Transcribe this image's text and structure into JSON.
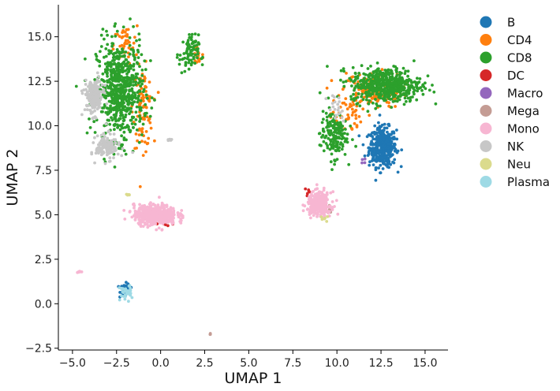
{
  "chart_data": {
    "type": "scatter",
    "title": "",
    "xlabel": "UMAP 1",
    "ylabel": "UMAP 2",
    "xlim": [
      -5.8,
      16.3
    ],
    "ylim": [
      -2.6,
      16.8
    ],
    "xticks": [
      -5.0,
      -2.5,
      0.0,
      2.5,
      5.0,
      7.5,
      10.0,
      12.5,
      15.0
    ],
    "xtick_labels": [
      "−5.0",
      "−2.5",
      "0.0",
      "2.5",
      "5.0",
      "7.5",
      "10.0",
      "12.5",
      "15.0"
    ],
    "yticks": [
      -2.5,
      0.0,
      2.5,
      5.0,
      7.5,
      10.0,
      12.5,
      15.0
    ],
    "ytick_labels": [
      "−2.5",
      "0.0",
      "2.5",
      "5.0",
      "7.5",
      "10.0",
      "12.5",
      "15.0"
    ],
    "grid": false,
    "legend_position": "right, outside plot",
    "series": [
      {
        "name": "B",
        "color": "#1f77b4",
        "clusters": [
          {
            "center": [
              12.6,
              8.8
            ],
            "spread": [
              0.7,
              1.0
            ],
            "count": 420
          },
          {
            "center": [
              -2.0,
              0.8
            ],
            "spread": [
              0.25,
              0.3
            ],
            "count": 60
          }
        ]
      },
      {
        "name": "CD4",
        "color": "#ff7f0e",
        "clusters": [
          {
            "center": [
              -1.0,
              11.0
            ],
            "spread": [
              0.5,
              2.0
            ],
            "count": 90
          },
          {
            "center": [
              -2.0,
              14.5
            ],
            "spread": [
              0.6,
              1.0
            ],
            "count": 40
          },
          {
            "center": [
              2.1,
              14.0
            ],
            "spread": [
              0.3,
              0.8
            ],
            "count": 25
          },
          {
            "center": [
              12.0,
              12.0
            ],
            "spread": [
              1.6,
              0.9
            ],
            "count": 160
          },
          {
            "center": [
              10.5,
              10.5
            ],
            "spread": [
              0.8,
              0.8
            ],
            "count": 40
          }
        ]
      },
      {
        "name": "CD8",
        "color": "#2ca02c",
        "clusters": [
          {
            "center": [
              -2.3,
              12.0
            ],
            "spread": [
              1.2,
              2.5
            ],
            "count": 650
          },
          {
            "center": [
              1.6,
              14.0
            ],
            "spread": [
              0.5,
              1.0
            ],
            "count": 80
          },
          {
            "center": [
              12.8,
              12.3
            ],
            "spread": [
              1.8,
              0.9
            ],
            "count": 520
          },
          {
            "center": [
              9.8,
              9.5
            ],
            "spread": [
              0.7,
              1.2
            ],
            "count": 160
          }
        ]
      },
      {
        "name": "DC",
        "color": "#d62728",
        "clusters": [
          {
            "center": [
              0.3,
              4.5
            ],
            "spread": [
              0.4,
              0.2
            ],
            "count": 8
          },
          {
            "center": [
              8.4,
              6.3
            ],
            "spread": [
              0.2,
              0.2
            ],
            "count": 6
          }
        ]
      },
      {
        "name": "Macro",
        "color": "#9467bd",
        "clusters": [
          {
            "center": [
              11.5,
              8.0
            ],
            "spread": [
              0.2,
              0.2
            ],
            "count": 4
          }
        ]
      },
      {
        "name": "Mega",
        "color": "#c49c94",
        "clusters": [
          {
            "center": [
              2.8,
              -1.7
            ],
            "spread": [
              0.05,
              0.05
            ],
            "count": 3
          },
          {
            "center": [
              9.5,
              5.2
            ],
            "spread": [
              0.3,
              0.3
            ],
            "count": 10
          }
        ]
      },
      {
        "name": "Mono",
        "color": "#f7b6d2",
        "clusters": [
          {
            "center": [
              -0.3,
              5.0
            ],
            "spread": [
              1.1,
              0.5
            ],
            "count": 520
          },
          {
            "center": [
              9.0,
              5.6
            ],
            "spread": [
              0.6,
              0.6
            ],
            "count": 300
          },
          {
            "center": [
              -4.6,
              1.8
            ],
            "spread": [
              0.1,
              0.05
            ],
            "count": 6
          }
        ]
      },
      {
        "name": "NK",
        "color": "#c7c7c7",
        "clusters": [
          {
            "center": [
              -3.8,
              11.6
            ],
            "spread": [
              0.5,
              0.9
            ],
            "count": 180
          },
          {
            "center": [
              -3.0,
              8.8
            ],
            "spread": [
              0.6,
              0.6
            ],
            "count": 150
          },
          {
            "center": [
              0.5,
              9.2
            ],
            "spread": [
              0.12,
              0.05
            ],
            "count": 6
          },
          {
            "center": [
              10.0,
              11.0
            ],
            "spread": [
              0.5,
              0.8
            ],
            "count": 20
          }
        ]
      },
      {
        "name": "Neu",
        "color": "#dbdb8d",
        "clusters": [
          {
            "center": [
              -1.8,
              6.1
            ],
            "spread": [
              0.2,
              0.1
            ],
            "count": 5
          },
          {
            "center": [
              9.2,
              4.8
            ],
            "spread": [
              0.3,
              0.3
            ],
            "count": 6
          }
        ]
      },
      {
        "name": "Plasma",
        "color": "#9edae5",
        "clusters": [
          {
            "center": [
              -2.0,
              0.6
            ],
            "spread": [
              0.3,
              0.4
            ],
            "count": 35
          }
        ]
      }
    ]
  }
}
